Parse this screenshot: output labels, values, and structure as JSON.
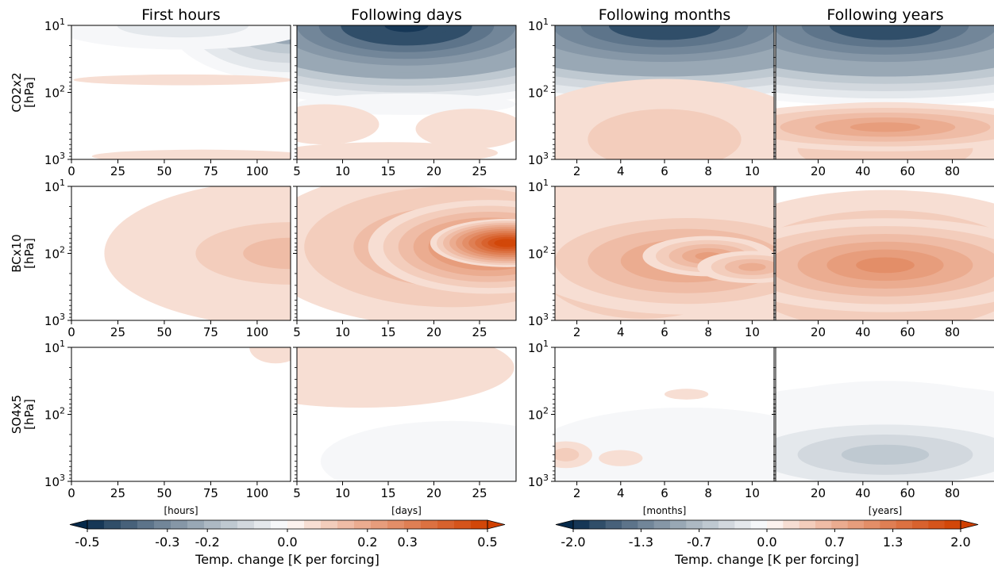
{
  "chart_data": {
    "type": "heatmap",
    "columns": [
      {
        "title": "First hours",
        "unit": "[hours]",
        "xlim": [
          0,
          118
        ],
        "xticks": [
          0,
          25,
          50,
          75,
          100
        ],
        "tick_labels": [
          "0",
          "25",
          "50",
          "75",
          "100"
        ],
        "colorbar": 0
      },
      {
        "title": "Following days",
        "unit": "[days]",
        "xlim": [
          5,
          29
        ],
        "xticks": [
          5,
          10,
          15,
          20,
          25
        ],
        "tick_labels": [
          "5",
          "10",
          "15",
          "20",
          "25"
        ],
        "colorbar": 0
      },
      {
        "title": "Following months",
        "unit": "[months]",
        "xlim": [
          1,
          11
        ],
        "xticks": [
          2,
          4,
          6,
          8,
          10
        ],
        "tick_labels": [
          "2",
          "4",
          "6",
          "8",
          "10"
        ],
        "colorbar": 1
      },
      {
        "title": "Following years",
        "unit": "[years]",
        "xlim": [
          1,
          99
        ],
        "xticks": [
          20,
          40,
          60,
          80
        ],
        "tick_labels": [
          "20",
          "40",
          "60",
          "80"
        ],
        "colorbar": 1
      }
    ],
    "rows": [
      {
        "label": "CO2x2",
        "unit": "[hPa]"
      },
      {
        "label": "BCx10",
        "unit": "[hPa]"
      },
      {
        "label": "SO4x5",
        "unit": "[hPa]"
      }
    ],
    "y_axis": {
      "scale": "log",
      "inverted": true,
      "ylim": [
        1000,
        10
      ],
      "tick_labels": [
        {
          "base": "10",
          "exp": "1"
        },
        {
          "base": "10",
          "exp": "2"
        },
        {
          "base": "10",
          "exp": "3"
        }
      ]
    },
    "panels": [
      [
        {
          "blobs": [
            {
              "x": 118,
              "y": 10,
              "value": -0.24,
              "sx": 0.55,
              "sy": 0.42
            },
            {
              "x": 60,
              "y": 10,
              "value": -0.1,
              "sx": 0.6,
              "sy": 0.18
            },
            {
              "x": 70,
              "y": 900,
              "value": 0.03,
              "sx": 0.5,
              "sy": 0.05
            },
            {
              "x": 60,
              "y": 65,
              "value": 0.015,
              "sx": 0.5,
              "sy": 0.04
            }
          ]
        },
        {
          "blobs": [
            {
              "x": 17,
              "y": 10,
              "value": -0.52,
              "sx": 1.2,
              "sy": 0.6
            },
            {
              "x": 17,
              "y": 150,
              "value": -0.03,
              "sx": 0.5,
              "sy": 0.08
            },
            {
              "x": 8,
              "y": 300,
              "value": 0.04,
              "sx": 0.25,
              "sy": 0.15
            },
            {
              "x": 24,
              "y": 350,
              "value": 0.04,
              "sx": 0.25,
              "sy": 0.15
            },
            {
              "x": 15,
              "y": 800,
              "value": 0.03,
              "sx": 0.5,
              "sy": 0.08
            }
          ]
        },
        {
          "blobs": [
            {
              "x": 6,
              "y": 10,
              "value": -1.9,
              "sx": 1.4,
              "sy": 0.6
            },
            {
              "x": 6,
              "y": 500,
              "value": 0.33,
              "sx": 0.7,
              "sy": 0.45
            }
          ]
        },
        {
          "blobs": [
            {
              "x": 50,
              "y": 10,
              "value": -1.9,
              "sx": 1.4,
              "sy": 0.6
            },
            {
              "x": 50,
              "y": 330,
              "value": 0.75,
              "sx": 0.8,
              "sy": 0.18
            },
            {
              "x": 50,
              "y": 700,
              "value": 0.3,
              "sx": 0.8,
              "sy": 0.35
            }
          ]
        }
      ],
      [
        {
          "blobs": [
            {
              "x": 118,
              "y": 100,
              "value": 0.12,
              "sx": 0.65,
              "sy": 0.35
            },
            {
              "x": 118,
              "y": 100,
              "value": 0.08,
              "sx": 0.85,
              "sy": 0.55
            }
          ]
        },
        {
          "blobs": [
            {
              "x": 28,
              "y": 70,
              "value": 0.52,
              "sx": 0.35,
              "sy": 0.18
            },
            {
              "x": 26,
              "y": 80,
              "value": 0.32,
              "sx": 0.55,
              "sy": 0.35
            },
            {
              "x": 22,
              "y": 80,
              "value": 0.15,
              "sx": 0.9,
              "sy": 0.6
            }
          ]
        },
        {
          "blobs": [
            {
              "x": 8,
              "y": 110,
              "value": 0.8,
              "sx": 0.3,
              "sy": 0.15
            },
            {
              "x": 10,
              "y": 160,
              "value": 0.6,
              "sx": 0.25,
              "sy": 0.12
            },
            {
              "x": 7,
              "y": 130,
              "value": 0.75,
              "sx": 0.75,
              "sy": 0.4
            },
            {
              "x": 5,
              "y": 150,
              "value": 0.35,
              "sx": 0.95,
              "sy": 0.8
            }
          ]
        },
        {
          "blobs": [
            {
              "x": 50,
              "y": 150,
              "value": 1.0,
              "sx": 0.8,
              "sy": 0.35
            },
            {
              "x": 50,
              "y": 180,
              "value": 0.6,
              "sx": 0.9,
              "sy": 0.6
            }
          ]
        }
      ],
      [
        {
          "blobs": [
            {
              "x": 110,
              "y": 10,
              "value": 0.012,
              "sx": 0.12,
              "sy": 0.12
            }
          ]
        },
        {
          "blobs": [
            {
              "x": 12,
              "y": 20,
              "value": 0.03,
              "sx": 0.7,
              "sy": 0.3
            },
            {
              "x": 22,
              "y": 500,
              "value": -0.04,
              "sx": 0.6,
              "sy": 0.3
            },
            {
              "x": 20,
              "y": 580,
              "value": -0.055,
              "sx": 0.08,
              "sy": 0.05
            }
          ]
        },
        {
          "blobs": [
            {
              "x": 7,
              "y": 500,
              "value": -0.2,
              "sx": 0.75,
              "sy": 0.4
            },
            {
              "x": 1.5,
              "y": 400,
              "value": 0.25,
              "sx": 0.12,
              "sy": 0.1
            },
            {
              "x": 4,
              "y": 450,
              "value": 0.2,
              "sx": 0.1,
              "sy": 0.06
            },
            {
              "x": 7,
              "y": 50,
              "value": 0.2,
              "sx": 0.1,
              "sy": 0.04
            }
          ]
        },
        {
          "blobs": [
            {
              "x": 50,
              "y": 400,
              "value": -0.7,
              "sx": 0.8,
              "sy": 0.3
            },
            {
              "x": 50,
              "y": 400,
              "value": -0.35,
              "sx": 0.85,
              "sy": 0.55
            },
            {
              "x": 50,
              "y": 140,
              "value": -0.1,
              "sx": 0.85,
              "sy": 0.3
            }
          ]
        }
      ]
    ],
    "colorbars": [
      {
        "label": "Temp. change [K per forcing]",
        "range": [
          -0.5,
          0.5
        ],
        "ticks": [
          -0.5,
          -0.3,
          -0.2,
          0.0,
          0.2,
          0.3,
          0.5
        ],
        "tick_labels": [
          "-0.5",
          "-0.3",
          "-0.2",
          "0.0",
          "0.2",
          "0.3",
          "0.5"
        ],
        "levels": 24,
        "extend": "both"
      },
      {
        "label": "Temp. change [K per forcing]",
        "range": [
          -2.0,
          2.0
        ],
        "ticks": [
          -2.0,
          -1.3,
          -0.7,
          0.0,
          0.7,
          1.3,
          2.0
        ],
        "tick_labels": [
          "-2.0",
          "-1.3",
          "-0.7",
          "0.0",
          "0.7",
          "1.3",
          "2.0"
        ],
        "levels": 24,
        "extend": "both"
      }
    ],
    "colors": {
      "cold": "#05294a",
      "neutral": "#ffffff",
      "warm": "#d04000"
    }
  }
}
